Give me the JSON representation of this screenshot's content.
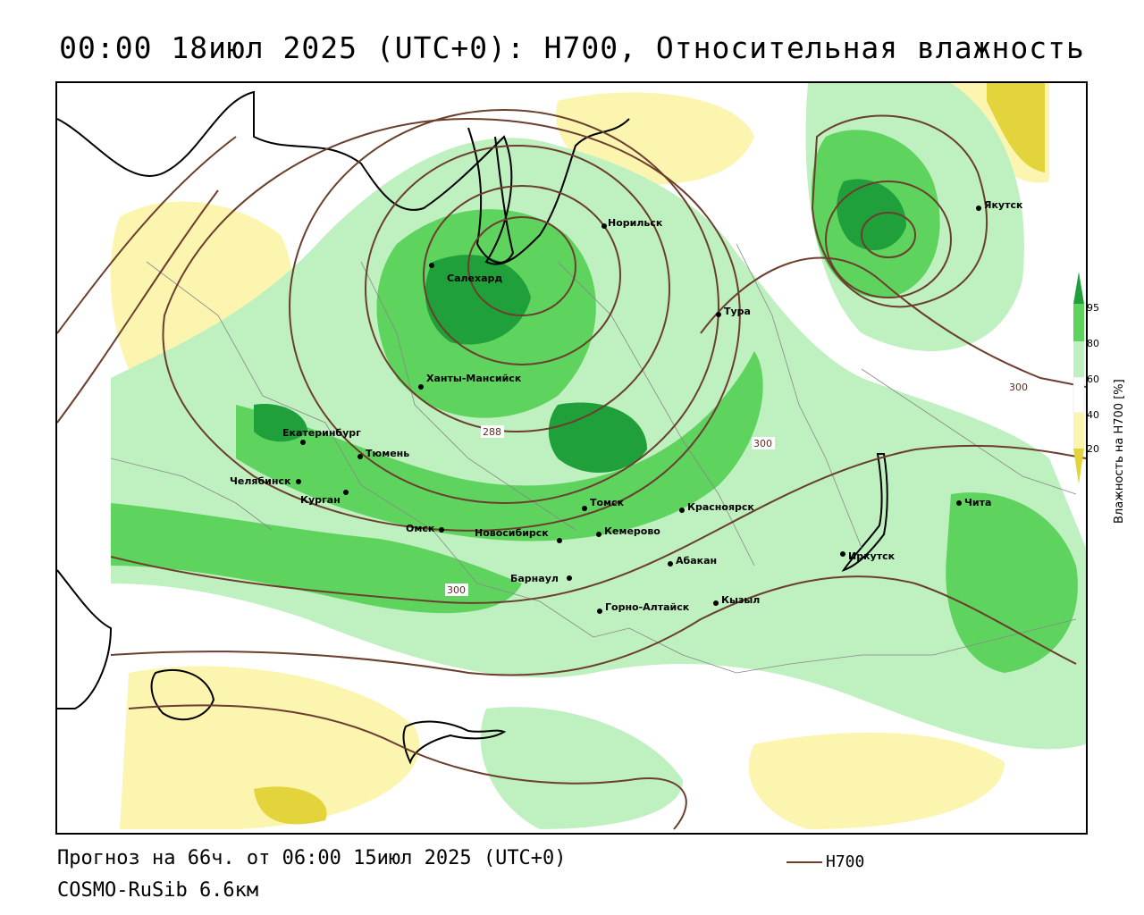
{
  "header": {
    "title": "00:00 18июл 2025 (UTC+0): H700, Относительная влажность"
  },
  "map": {
    "cities": [
      {
        "name": "Салехард",
        "lon": 66.6,
        "lat": 66.5
      },
      {
        "name": "Норильск",
        "lon": 88.2,
        "lat": 69.3
      },
      {
        "name": "Якутск",
        "lon": 129.7,
        "lat": 62.0
      },
      {
        "name": "Тура",
        "lon": 100.2,
        "lat": 64.3
      },
      {
        "name": "Ханты-Мансийск",
        "lon": 69.0,
        "lat": 61.0
      },
      {
        "name": "Екатеринбург",
        "lon": 60.6,
        "lat": 56.8
      },
      {
        "name": "Тюмень",
        "lon": 65.5,
        "lat": 57.2
      },
      {
        "name": "Челябинск",
        "lon": 61.4,
        "lat": 55.2
      },
      {
        "name": "Курган",
        "lon": 65.3,
        "lat": 55.4
      },
      {
        "name": "Омск",
        "lon": 73.4,
        "lat": 55.0
      },
      {
        "name": "Новосибирск",
        "lon": 82.9,
        "lat": 55.0
      },
      {
        "name": "Томск",
        "lon": 84.9,
        "lat": 56.5
      },
      {
        "name": "Кемерово",
        "lon": 86.1,
        "lat": 55.3
      },
      {
        "name": "Красноярск",
        "lon": 92.9,
        "lat": 56.0
      },
      {
        "name": "Абакан",
        "lon": 91.4,
        "lat": 53.7
      },
      {
        "name": "Барнаул",
        "lon": 83.8,
        "lat": 53.3
      },
      {
        "name": "Горно-Алтайск",
        "lon": 85.9,
        "lat": 51.9
      },
      {
        "name": "Кызыл",
        "lon": 94.4,
        "lat": 51.7
      },
      {
        "name": "Иркутск",
        "lon": 104.3,
        "lat": 52.3
      },
      {
        "name": "Чита",
        "lon": 113.5,
        "lat": 52.0
      }
    ],
    "isoline_labels": [
      "288",
      "300",
      "300",
      "300"
    ],
    "colors": {
      "green_light": "#bff0bf",
      "green_mid": "#5ed35e",
      "green_dark": "#1fa03a",
      "yellow_light": "#fbf5b0",
      "yellow_dark": "#e2d43a",
      "isoline": "#6b3e2e"
    }
  },
  "colorbar": {
    "ticks": [
      "95",
      "80",
      "60",
      "40",
      "20"
    ],
    "title": "Влажность на H700 [%]"
  },
  "footer": {
    "forecast": "Прогноз на 66ч. от 06:00 15июл 2025 (UTC+0)",
    "model": "COSMO-RuSib 6.6км",
    "legend_label": "H700"
  }
}
